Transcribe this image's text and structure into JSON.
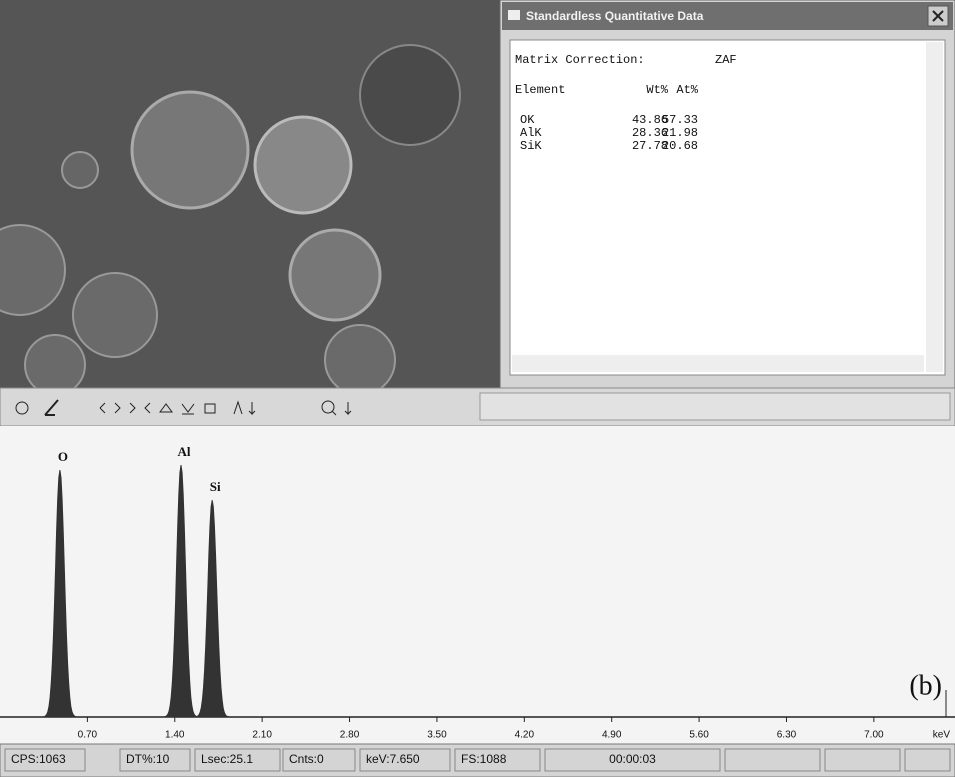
{
  "window": {
    "title": "Standardless Quantitative Data",
    "matrix_label": "Matrix Correction:",
    "matrix_value": "ZAF",
    "table": {
      "header": [
        "Element",
        "Wt%",
        "At%"
      ],
      "rows": [
        [
          "OK",
          43.86,
          57.33
        ],
        [
          "AlK",
          28.36,
          21.98
        ],
        [
          "SiK",
          27.78,
          20.68
        ]
      ]
    }
  },
  "chart_data": {
    "type": "spectrum",
    "peaks": [
      {
        "label": "O",
        "x": 0.48,
        "y": 936
      },
      {
        "label": "Al",
        "x": 1.45,
        "y": 955
      },
      {
        "label": "Si",
        "x": 1.7,
        "y": 822
      }
    ],
    "xlim": [
      0,
      7.65
    ],
    "ylim": [
      0,
      1088
    ],
    "xticks": [
      {
        "value": 0.7,
        "label": "0.70"
      },
      {
        "value": 1.4,
        "label": "1.40"
      },
      {
        "value": 2.1,
        "label": "2.10"
      },
      {
        "value": 2.8,
        "label": "2.80"
      },
      {
        "value": 3.5,
        "label": "3.50"
      },
      {
        "value": 4.2,
        "label": "4.20"
      },
      {
        "value": 4.9,
        "label": "4.90"
      },
      {
        "value": 5.6,
        "label": "5.60"
      },
      {
        "value": 6.3,
        "label": "6.30"
      },
      {
        "value": 7.0,
        "label": "7.00"
      }
    ],
    "x_unit": "keV",
    "annotation": "(b)",
    "color": "#333333"
  },
  "status_bar": [
    "CPS:1063",
    "DT%:10",
    "Lsec:25.1",
    "Cnts:0",
    "keV:7.650",
    "FS:1088",
    "00:00:03"
  ]
}
